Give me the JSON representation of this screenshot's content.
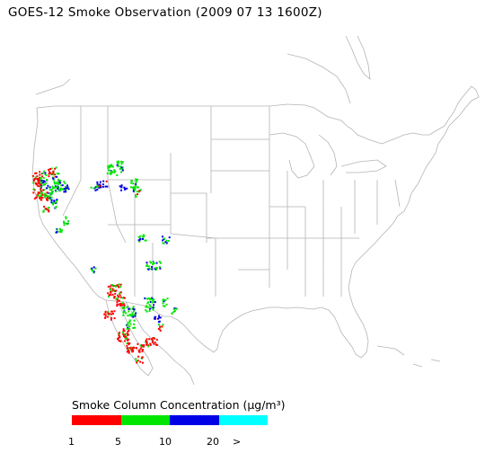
{
  "title": "GOES-12 Smoke Observation (2009 07 13  1600Z)",
  "legend": {
    "title": "Smoke Column Concentration (μg/m³)",
    "bins": [
      {
        "color": "#ff0000"
      },
      {
        "color": "#00e600"
      },
      {
        "color": "#0000e6"
      },
      {
        "color": "#00ffff"
      }
    ],
    "tick_labels": [
      "1",
      "5",
      "10",
      "20",
      ">"
    ]
  }
}
